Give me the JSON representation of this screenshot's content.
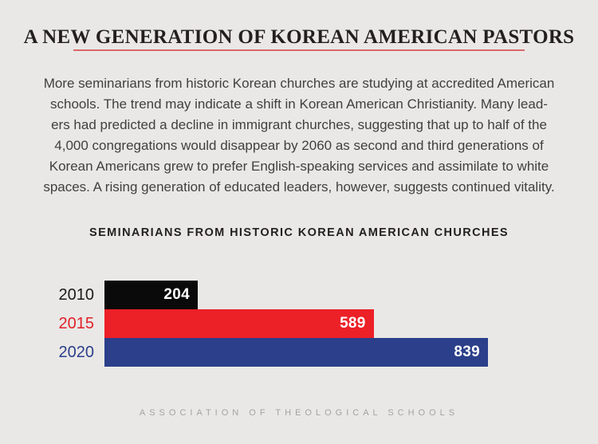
{
  "page": {
    "background_color": "#e9e8e6"
  },
  "header": {
    "title": "A NEW GENERATION OF KOREAN AMERICAN PASTORS",
    "underline_color": "#d8686c"
  },
  "intro": {
    "lines": [
      "More seminarians from historic Korean churches are studying at accredited American",
      "schools. The trend may indicate a shift in Korean American Christianity. Many lead-",
      "ers had predicted a decline in immigrant churches, suggesting that up to half of the",
      "4,000 congregations would disappear by 2060 as second and third generations of",
      "Korean Americans grew to prefer English-speaking services and assimilate to white",
      "spaces. A rising generation of educated leaders, however, suggests continued vitality."
    ]
  },
  "chart_data": {
    "type": "bar",
    "orientation": "horizontal",
    "title": "SEMINARIANS FROM HISTORIC KOREAN AMERICAN CHURCHES",
    "categories": [
      "2010",
      "2015",
      "2020"
    ],
    "values": [
      204,
      589,
      839
    ],
    "bar_colors": [
      "#0a0a0a",
      "#ec2027",
      "#2b3f8a"
    ],
    "label_colors": [
      "#1a1a1a",
      "#e02128",
      "#2b3f8a"
    ],
    "value_label_color": "#ffffff",
    "xlim": [
      0,
      839
    ],
    "grid": false,
    "legend": false,
    "value_labels_inside_bars": true
  },
  "footer": {
    "text": "ASSOCIATION OF THEOLOGICAL SCHOOLS"
  }
}
